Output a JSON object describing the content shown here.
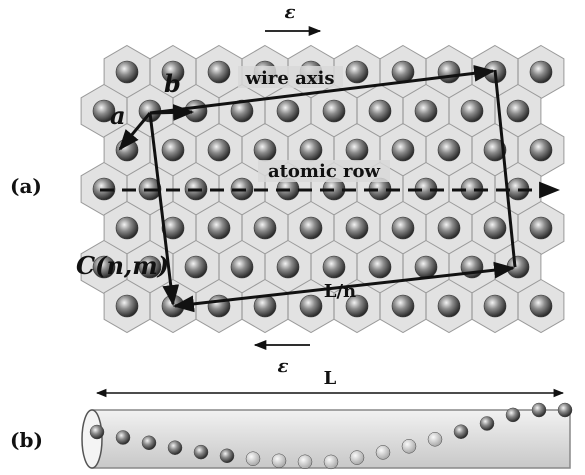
{
  "figure": {
    "panel_a": "(a)",
    "panel_b": "(b)",
    "epsilon_top": "ε",
    "epsilon_bottom": "ε",
    "vector_a": "a",
    "vector_b": "b",
    "wire_axis": "wire axis",
    "atomic_row": "atomic row",
    "chiral_vector": "C(n,m)",
    "period_label": "L/n",
    "length_label": "L"
  }
}
